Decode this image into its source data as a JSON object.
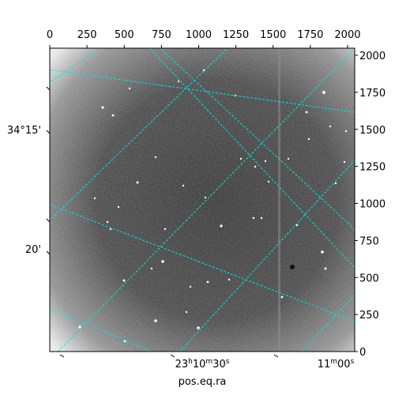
{
  "chart_data": {
    "type": "image",
    "title": "",
    "xlabel": "pos.eq.ra",
    "ylabel": "",
    "colormap": "gray",
    "grid": {
      "on": true,
      "color": "#00e5e5",
      "style": "dashed"
    },
    "pixel_axes": {
      "x_range": [
        0,
        2048
      ],
      "y_range": [
        0,
        2048
      ],
      "top_ticks": [
        "0",
        "250",
        "500",
        "750",
        "1000",
        "1250",
        "1500",
        "1750",
        "2000"
      ],
      "top_tick_values": [
        0,
        250,
        500,
        750,
        1000,
        1250,
        1500,
        1750,
        2000
      ],
      "right_ticks": [
        "0",
        "250",
        "500",
        "750",
        "1000",
        "1250",
        "1500",
        "1750",
        "2000"
      ],
      "right_tick_values": [
        0,
        250,
        500,
        750,
        1000,
        1250,
        1500,
        1750,
        2000
      ]
    },
    "world_axes": {
      "bottom_labels": [
        {
          "h": "23",
          "hs": "h",
          "m": "10",
          "ms": "m",
          "s": "30",
          "ss": "s"
        },
        {
          "h": "",
          "hs": "",
          "m": "11",
          "ms": "m",
          "s": "00",
          "ss": "s"
        }
      ],
      "left_labels": [
        "34°15'",
        "20'"
      ]
    }
  }
}
